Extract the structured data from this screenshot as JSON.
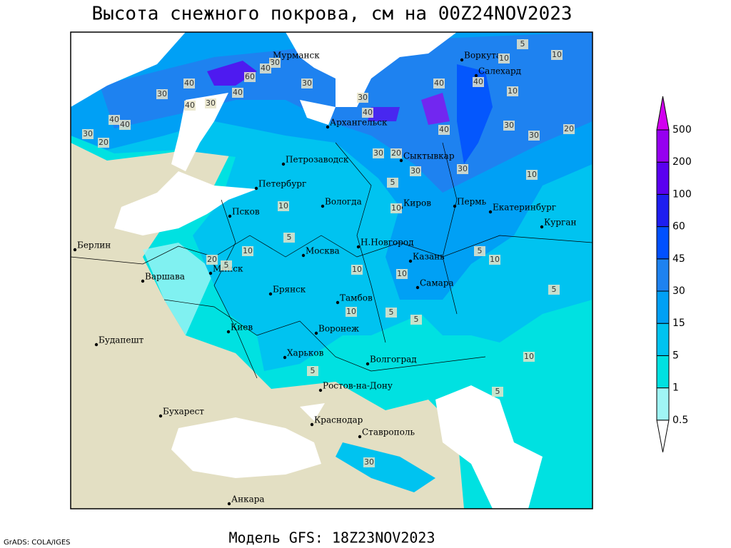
{
  "title": "Высота снежного покрова, см на 00Z24NOV2023",
  "model_caption": "Модель GFS: 18Z23NOV2023",
  "credit": "GrADS: COLA/IGES",
  "cities": [
    "Мурманск",
    "Воркута",
    "Салехард",
    "Архангельск",
    "Сыктывкар",
    "Петрозаводск",
    "Петербург",
    "Вологда",
    "Киров",
    "Пермь",
    "Екатеринбург",
    "Курган",
    "Псков",
    "Берлин",
    "Н.Новгород",
    "Казань",
    "Москва",
    "Минск",
    "Варшава",
    "Самара",
    "Брянск",
    "Тамбов",
    "Киев",
    "Воронеж",
    "Будапешт",
    "Харьков",
    "Волгоград",
    "Ростов-на-Дону",
    "Бухарест",
    "Краснодар",
    "Ставрополь",
    "Анкара"
  ],
  "contour_labels": [
    40,
    30,
    60,
    40,
    30,
    30,
    40,
    40,
    30,
    40,
    40,
    30,
    20,
    40,
    40,
    40,
    30,
    40,
    30,
    20,
    30,
    30,
    20,
    30,
    30,
    10,
    10,
    5,
    10,
    5,
    10,
    10,
    5,
    10,
    10,
    20,
    5,
    10,
    10,
    5,
    5,
    5,
    10,
    5,
    5,
    5,
    10,
    30,
    10
  ],
  "legend": {
    "levels": [
      0.5,
      1,
      5,
      15,
      30,
      45,
      60,
      100,
      200,
      500
    ],
    "colors": [
      "#ffffff",
      "#a0f5f5",
      "#00e1e1",
      "#00c3f0",
      "#00a0f5",
      "#1e82f0",
      "#0050ff",
      "#1e1ef0",
      "#5a00f0",
      "#9600f0",
      "#d200f0"
    ]
  }
}
